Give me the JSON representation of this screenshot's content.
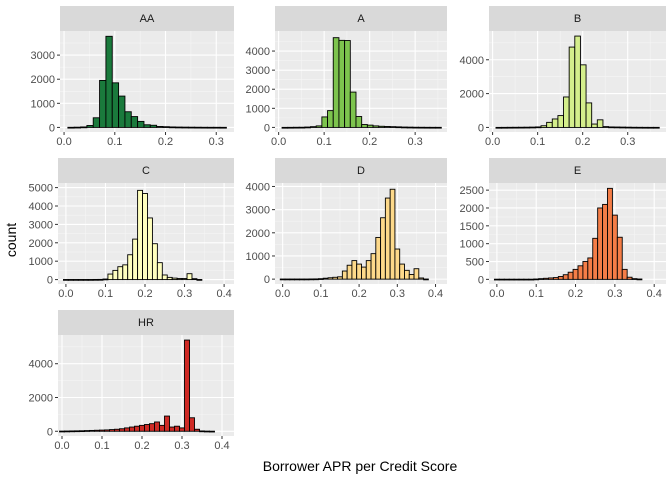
{
  "chart_data": {
    "type": "bar",
    "xlabel": "Borrower APR per Credit Score",
    "ylabel": "count",
    "bin_width": 0.0125,
    "colors": {
      "AA": "#1a7a3c",
      "A": "#7dc44e",
      "B": "#d4ee8c",
      "C": "#ffffbf",
      "D": "#fdd98a",
      "E": "#f47d47",
      "HR": "#cf2a25"
    },
    "panels": [
      {
        "name": "AA",
        "xlim": [
          -0.008,
          0.335
        ],
        "ylim": [
          -190,
          4000
        ],
        "xticks": [
          0.0,
          0.1,
          0.2,
          0.3
        ],
        "xtick_labels": [
          "0.0",
          "0.1",
          "0.2",
          "0.3"
        ],
        "yticks": [
          0,
          1000,
          2000,
          3000
        ],
        "ytick_labels": [
          "0",
          "1000",
          "2000",
          "3000"
        ],
        "bin_start": 0.0075,
        "values": [
          5,
          10,
          20,
          80,
          400,
          1950,
          3780,
          1850,
          1300,
          650,
          450,
          250,
          110,
          90,
          40,
          30,
          20,
          15,
          12,
          10,
          8,
          6,
          5,
          5,
          4
        ]
      },
      {
        "name": "A",
        "xlim": [
          -0.008,
          0.37
        ],
        "ylim": [
          -240,
          5050
        ],
        "xticks": [
          0.0,
          0.1,
          0.2,
          0.3
        ],
        "xtick_labels": [
          "0.0",
          "0.1",
          "0.2",
          "0.3"
        ],
        "yticks": [
          0,
          1000,
          2000,
          3000,
          4000
        ],
        "ytick_labels": [
          "0",
          "1000",
          "2000",
          "3000",
          "4000"
        ],
        "bin_start": 0.0075,
        "values": [
          3,
          5,
          8,
          10,
          20,
          40,
          80,
          550,
          880,
          4700,
          4560,
          4550,
          1850,
          570,
          150,
          120,
          80,
          60,
          50,
          40,
          30,
          20,
          15,
          10,
          8,
          6,
          5,
          5
        ]
      },
      {
        "name": "B",
        "xlim": [
          -0.008,
          0.385
        ],
        "ylim": [
          -270,
          5700
        ],
        "xticks": [
          0.0,
          0.1,
          0.2,
          0.3
        ],
        "xtick_labels": [
          "0.0",
          "0.1",
          "0.2",
          "0.3"
        ],
        "yticks": [
          0,
          2000,
          4000
        ],
        "ytick_labels": [
          "0",
          "2000",
          "4000"
        ],
        "bin_start": 0.0075,
        "values": [
          3,
          5,
          8,
          10,
          12,
          15,
          20,
          30,
          100,
          300,
          500,
          700,
          1800,
          4750,
          5400,
          3700,
          1450,
          200,
          450,
          50,
          30,
          25,
          20,
          15,
          10,
          8,
          6,
          5,
          5
        ]
      },
      {
        "name": "C",
        "xlim": [
          -0.02,
          0.425
        ],
        "ylim": [
          -240,
          5250
        ],
        "xticks": [
          0.0,
          0.1,
          0.2,
          0.3,
          0.4
        ],
        "xtick_labels": [
          "0.0",
          "0.1",
          "0.2",
          "0.3",
          "0.4"
        ],
        "yticks": [
          0,
          1000,
          2000,
          3000,
          4000,
          5000
        ],
        "ytick_labels": [
          "0",
          "1000",
          "2000",
          "3000",
          "4000",
          "5000"
        ],
        "bin_start": -0.00625,
        "values": [
          5,
          5,
          5,
          5,
          5,
          5,
          8,
          10,
          30,
          300,
          500,
          700,
          800,
          1350,
          2200,
          4850,
          4680,
          3350,
          1950,
          920,
          250,
          120,
          80,
          60,
          60,
          320,
          50,
          5
        ]
      },
      {
        "name": "D",
        "xlim": [
          -0.02,
          0.43
        ],
        "ylim": [
          -210,
          4150
        ],
        "xticks": [
          0.0,
          0.1,
          0.2,
          0.3,
          0.4
        ],
        "xtick_labels": [
          "0.0",
          "0.1",
          "0.2",
          "0.3",
          "0.4"
        ],
        "yticks": [
          0,
          1000,
          2000,
          3000,
          4000
        ],
        "ytick_labels": [
          "0",
          "1000",
          "2000",
          "3000",
          "4000"
        ],
        "bin_start": -0.00625,
        "values": [
          5,
          5,
          5,
          5,
          5,
          5,
          8,
          10,
          20,
          40,
          60,
          80,
          100,
          350,
          600,
          800,
          650,
          520,
          800,
          1100,
          1800,
          2650,
          3500,
          3880,
          1300,
          650,
          380,
          200,
          450,
          50,
          5
        ]
      },
      {
        "name": "E",
        "xlim": [
          -0.02,
          0.43
        ],
        "ylim": [
          -130,
          2700
        ],
        "xticks": [
          0.0,
          0.1,
          0.2,
          0.3,
          0.4
        ],
        "xtick_labels": [
          "0.0",
          "0.1",
          "0.2",
          "0.3",
          "0.4"
        ],
        "yticks": [
          0,
          500,
          1000,
          1500,
          2000,
          2500
        ],
        "ytick_labels": [
          "0",
          "500",
          "1000",
          "1500",
          "2000",
          "2500"
        ],
        "bin_start": -0.00625,
        "values": [
          5,
          5,
          5,
          5,
          5,
          5,
          5,
          5,
          10,
          20,
          30,
          40,
          50,
          80,
          130,
          200,
          280,
          380,
          500,
          600,
          1150,
          2000,
          2100,
          2550,
          1800,
          1180,
          280,
          60,
          20,
          10
        ]
      },
      {
        "name": "HR",
        "xlim": [
          -0.01,
          0.43
        ],
        "ylim": [
          -280,
          5700
        ],
        "xticks": [
          0.0,
          0.1,
          0.2,
          0.3,
          0.4
        ],
        "xtick_labels": [
          "0.0",
          "0.1",
          "0.2",
          "0.3",
          "0.4"
        ],
        "yticks": [
          0,
          2000,
          4000
        ],
        "ytick_labels": [
          "0",
          "2000",
          "4000"
        ],
        "bin_start": -0.00625,
        "values": [
          10,
          15,
          20,
          25,
          30,
          40,
          50,
          60,
          70,
          80,
          100,
          120,
          150,
          200,
          250,
          300,
          350,
          400,
          450,
          550,
          350,
          900,
          250,
          300,
          200,
          5400,
          800,
          120,
          20,
          10,
          5
        ]
      }
    ]
  }
}
